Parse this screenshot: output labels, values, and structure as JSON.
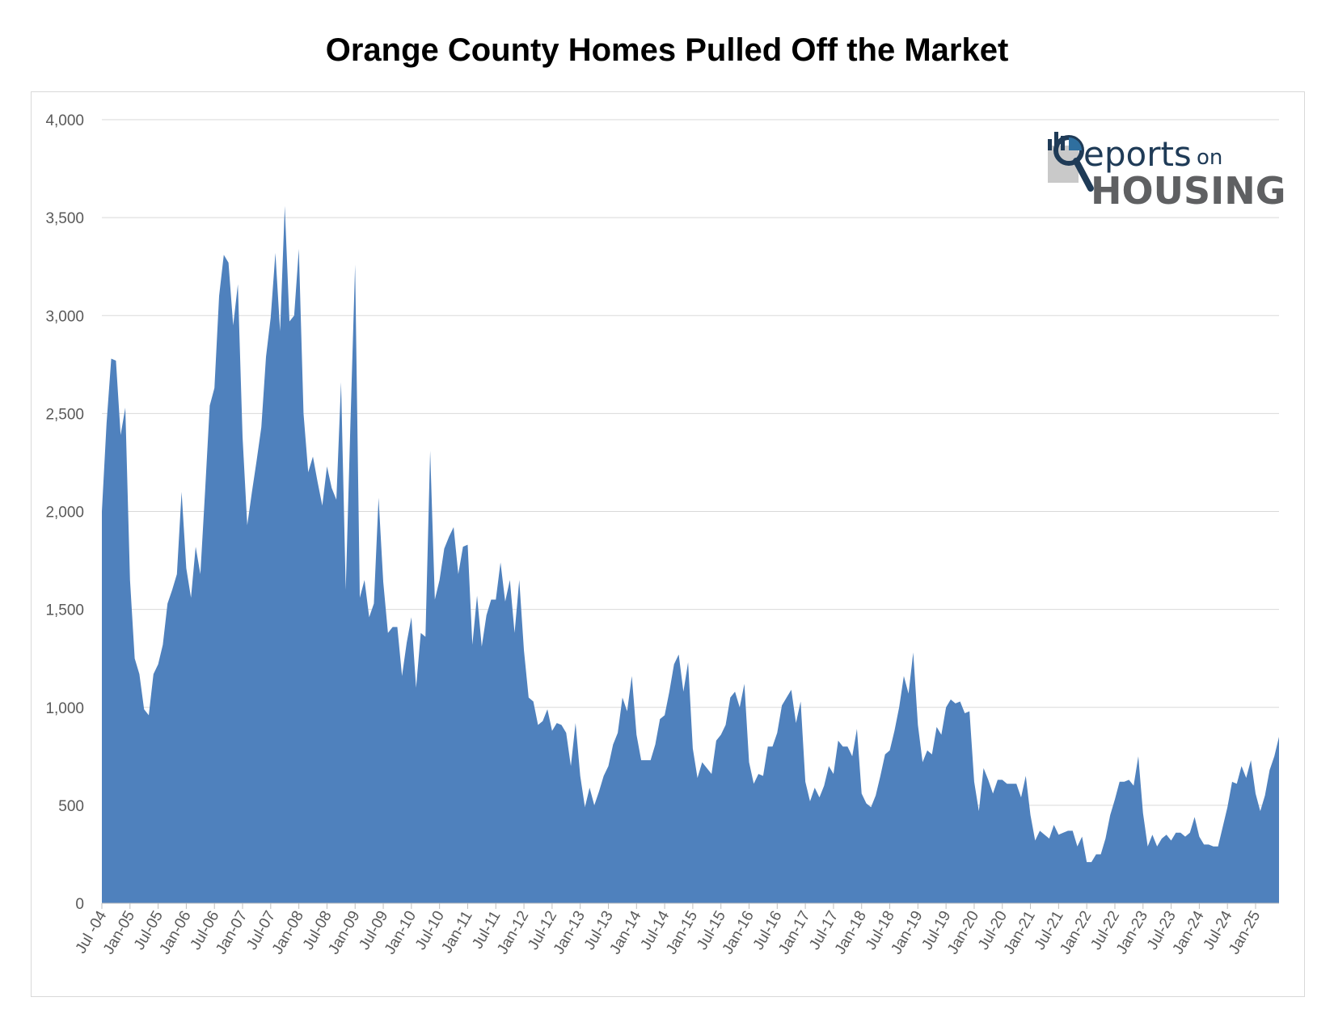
{
  "chart_data": {
    "type": "area",
    "title": "Orange County Homes Pulled Off the Market",
    "xlabel": "",
    "ylabel": "",
    "ylim": [
      0,
      4000
    ],
    "yticks": [
      0,
      500,
      1000,
      1500,
      2000,
      2500,
      3000,
      3500,
      4000
    ],
    "ytick_labels": [
      "0",
      "500",
      "1,000",
      "1,500",
      "2,000",
      "2,500",
      "3,000",
      "3,500",
      "4,000"
    ],
    "xtick_labels": [
      "Jul -04",
      "Jan-05",
      "Jul-05",
      "Jan-06",
      "Jul-06",
      "Jan-07",
      "Jul-07",
      "Jan-08",
      "Jul-08",
      "Jan-09",
      "Jul-09",
      "Jan-10",
      "Jul-10",
      "Jan-11",
      "Jul-11",
      "Jan-12",
      "Jul-12",
      "Jan-13",
      "Jul-13",
      "Jan-14",
      "Jul-14",
      "Jan-15",
      "Jul-15",
      "Jan-16",
      "Jul-16",
      "Jan-17",
      "Jul-17",
      "Jan-18",
      "Jul-18",
      "Jan-19",
      "Jul-19",
      "Jan-20",
      "Jul-20",
      "Jan-21",
      "Jul-21",
      "Jan-22",
      "Jul-22",
      "Jan-23",
      "Jul-23",
      "Jan-24",
      "Jul-24",
      "Jan-25"
    ],
    "x_start": "Jul-04",
    "x_end": "Jun-25",
    "grid": true,
    "legend": "none",
    "color": "#4f81bd",
    "series": [
      {
        "values": [
          2000,
          2450,
          2780,
          2770,
          2390,
          2530,
          1650,
          1250,
          1170,
          990,
          960,
          1170,
          1220,
          1320,
          1530,
          1600,
          1680,
          2100,
          1710,
          1560,
          1820,
          1680,
          2100,
          2540,
          2630,
          3100,
          3310,
          3270,
          2950,
          3160,
          2380,
          1930,
          2100,
          2260,
          2430,
          2790,
          2990,
          3320,
          2920,
          3560,
          2970,
          3000,
          3340,
          2500,
          2200,
          2280,
          2150,
          2030,
          2230,
          2120,
          2060,
          2660,
          1600,
          2450,
          3260,
          1560,
          1650,
          1460,
          1530,
          2070,
          1640,
          1380,
          1410,
          1410,
          1160,
          1330,
          1460,
          1100,
          1380,
          1360,
          2310,
          1550,
          1650,
          1810,
          1870,
          1920,
          1680,
          1820,
          1830,
          1320,
          1570,
          1310,
          1470,
          1550,
          1550,
          1740,
          1540,
          1650,
          1380,
          1650,
          1290,
          1050,
          1030,
          910,
          930,
          990,
          880,
          920,
          910,
          870,
          700,
          920,
          650,
          490,
          590,
          500,
          570,
          650,
          700,
          810,
          870,
          1050,
          980,
          1160,
          860,
          730,
          730,
          730,
          810,
          940,
          960,
          1080,
          1220,
          1270,
          1080,
          1230,
          790,
          640,
          720,
          690,
          660,
          830,
          860,
          910,
          1050,
          1080,
          1000,
          1120,
          720,
          610,
          660,
          650,
          800,
          800,
          870,
          1010,
          1050,
          1090,
          920,
          1030,
          620,
          520,
          590,
          540,
          600,
          700,
          660,
          830,
          800,
          800,
          750,
          890,
          560,
          510,
          490,
          550,
          650,
          760,
          780,
          880,
          1000,
          1160,
          1070,
          1280,
          910,
          720,
          780,
          760,
          900,
          860,
          1000,
          1040,
          1020,
          1030,
          970,
          980,
          620,
          470,
          690,
          630,
          560,
          630,
          630,
          610,
          610,
          610,
          540,
          650,
          450,
          320,
          370,
          350,
          330,
          400,
          350,
          360,
          370,
          370,
          290,
          340,
          210,
          210,
          250,
          250,
          330,
          450,
          530,
          620,
          620,
          630,
          600,
          750,
          460,
          290,
          350,
          290,
          330,
          350,
          320,
          360,
          360,
          340,
          360,
          440,
          340,
          300,
          300,
          290,
          290,
          390,
          490,
          620,
          610,
          700,
          640,
          730,
          560,
          470,
          550,
          680,
          750,
          850
        ]
      }
    ]
  },
  "logo": {
    "line1": "eports",
    "line1_on": "on",
    "line2": "HOUSING",
    "letter": "R",
    "icon": "magnifier-bars-icon"
  }
}
